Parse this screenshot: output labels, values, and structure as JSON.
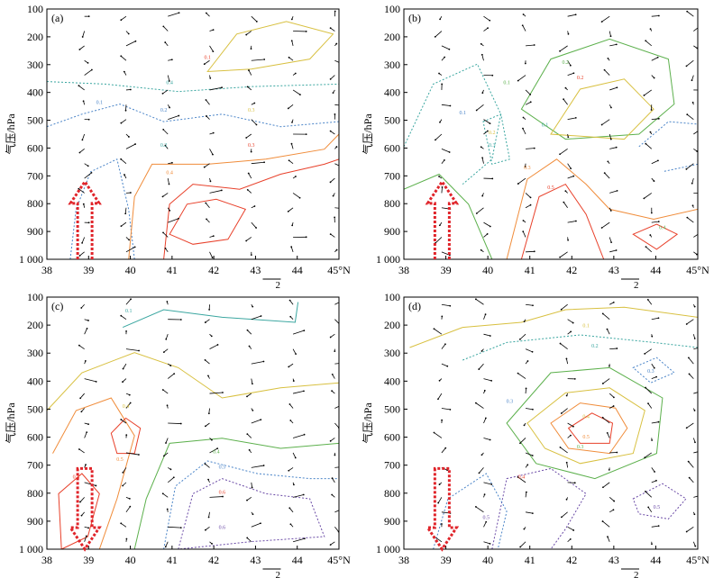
{
  "chart_data": [
    {
      "panel": "(a)",
      "type": "contour-vector",
      "ylabel": "气压/hPa",
      "x_ticks": [
        "38",
        "39",
        "40",
        "41",
        "42",
        "43",
        "44",
        "45°N"
      ],
      "y_ticks": [
        "100",
        "200",
        "300",
        "400",
        "500",
        "600",
        "700",
        "800",
        "900",
        "1 000"
      ],
      "x_range": [
        38,
        45
      ],
      "y_range": [
        100,
        1000
      ],
      "arrow": "up",
      "contour_labels": [
        "0.4",
        "0.2",
        "0.1",
        "0.3",
        "0.4",
        "0.1",
        "0.3",
        "0.2"
      ],
      "bottom_mark": "2"
    },
    {
      "panel": "(b)",
      "type": "contour-vector",
      "ylabel": "气压/hPa",
      "x_ticks": [
        "38",
        "39",
        "40",
        "41",
        "42",
        "43",
        "44",
        "45°N"
      ],
      "y_ticks": [
        "100",
        "200",
        "300",
        "400",
        "500",
        "600",
        "700",
        "800",
        "900",
        "1 000"
      ],
      "x_range": [
        38,
        45
      ],
      "y_range": [
        100,
        1000
      ],
      "arrow": "up",
      "contour_labels": [
        "0.1",
        "0.2",
        "0.3",
        "0.1",
        "0.1",
        "0.2",
        "0.3",
        "0.2",
        "0.5",
        "0.4"
      ],
      "bottom_mark": "2"
    },
    {
      "panel": "(c)",
      "type": "contour-vector",
      "ylabel": "气压/hPa",
      "x_ticks": [
        "38",
        "39",
        "40",
        "41",
        "42",
        "43",
        "44",
        "45°N"
      ],
      "y_ticks": [
        "100",
        "200",
        "300",
        "400",
        "500",
        "600",
        "700",
        "800",
        "900",
        "1 000"
      ],
      "x_range": [
        38,
        45
      ],
      "y_range": [
        100,
        1000
      ],
      "arrow": "down",
      "contour_labels": [
        "0.1",
        "0.4",
        "0.5",
        "0.4",
        "0.6",
        "0.4",
        "0.5",
        "0.6"
      ],
      "bottom_mark": "2"
    },
    {
      "panel": "(d)",
      "type": "contour-vector",
      "ylabel": "气压/hPa",
      "x_ticks": [
        "38",
        "39",
        "40",
        "41",
        "42",
        "43",
        "44",
        "45°N"
      ],
      "y_ticks": [
        "100",
        "200",
        "300",
        "400",
        "500",
        "600",
        "700",
        "800",
        "900",
        "1 000"
      ],
      "x_range": [
        38,
        45
      ],
      "y_range": [
        100,
        1000
      ],
      "arrow": "down",
      "contour_labels": [
        "0.1",
        "0.2",
        "0.3",
        "0.3",
        "0.4",
        "0.5",
        "0.4",
        "0.5",
        "0.5",
        "0.3"
      ],
      "bottom_mark": "2"
    }
  ],
  "colors": {
    "frame": "#000000",
    "arrow": "#e0242a",
    "contour_warm": "#e8402a",
    "contour_orange": "#f08c3a",
    "contour_yellow": "#d8c040",
    "contour_green": "#5cb04c",
    "contour_teal": "#3aa6a0",
    "contour_blue": "#4a84c8",
    "contour_purple": "#6a4aa6"
  }
}
